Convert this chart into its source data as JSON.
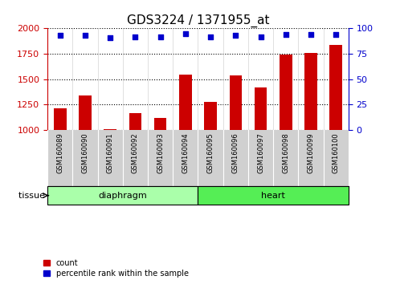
{
  "title": "GDS3224 / 1371955_at",
  "samples": [
    "GSM160089",
    "GSM160090",
    "GSM160091",
    "GSM160092",
    "GSM160093",
    "GSM160094",
    "GSM160095",
    "GSM160096",
    "GSM160097",
    "GSM160098",
    "GSM160099",
    "GSM160100"
  ],
  "counts": [
    1210,
    1340,
    1010,
    1165,
    1120,
    1545,
    1275,
    1535,
    1420,
    1740,
    1760,
    1840
  ],
  "percentiles": [
    93,
    93,
    91,
    92,
    92,
    95,
    92,
    93,
    92,
    94,
    94,
    94
  ],
  "bar_color": "#cc0000",
  "dot_color": "#0000cc",
  "ylim_left": [
    1000,
    2000
  ],
  "ylim_right": [
    0,
    100
  ],
  "yticks_left": [
    1000,
    1250,
    1500,
    1750,
    2000
  ],
  "yticks_right": [
    0,
    25,
    50,
    75,
    100
  ],
  "groups": [
    {
      "label": "diaphragm",
      "start": 0,
      "end": 6,
      "light_color": "#ccffcc",
      "dark_color": "#66ee66"
    },
    {
      "label": "heart",
      "start": 6,
      "end": 12,
      "light_color": "#66ee66",
      "dark_color": "#33dd33"
    }
  ],
  "tissue_label": "tissue",
  "legend_count": "count",
  "legend_percentile": "percentile rank within the sample",
  "plot_bg_color": "#ffffff",
  "xtick_bg_color": "#d0d0d0",
  "title_fontsize": 11,
  "bar_width": 0.5
}
